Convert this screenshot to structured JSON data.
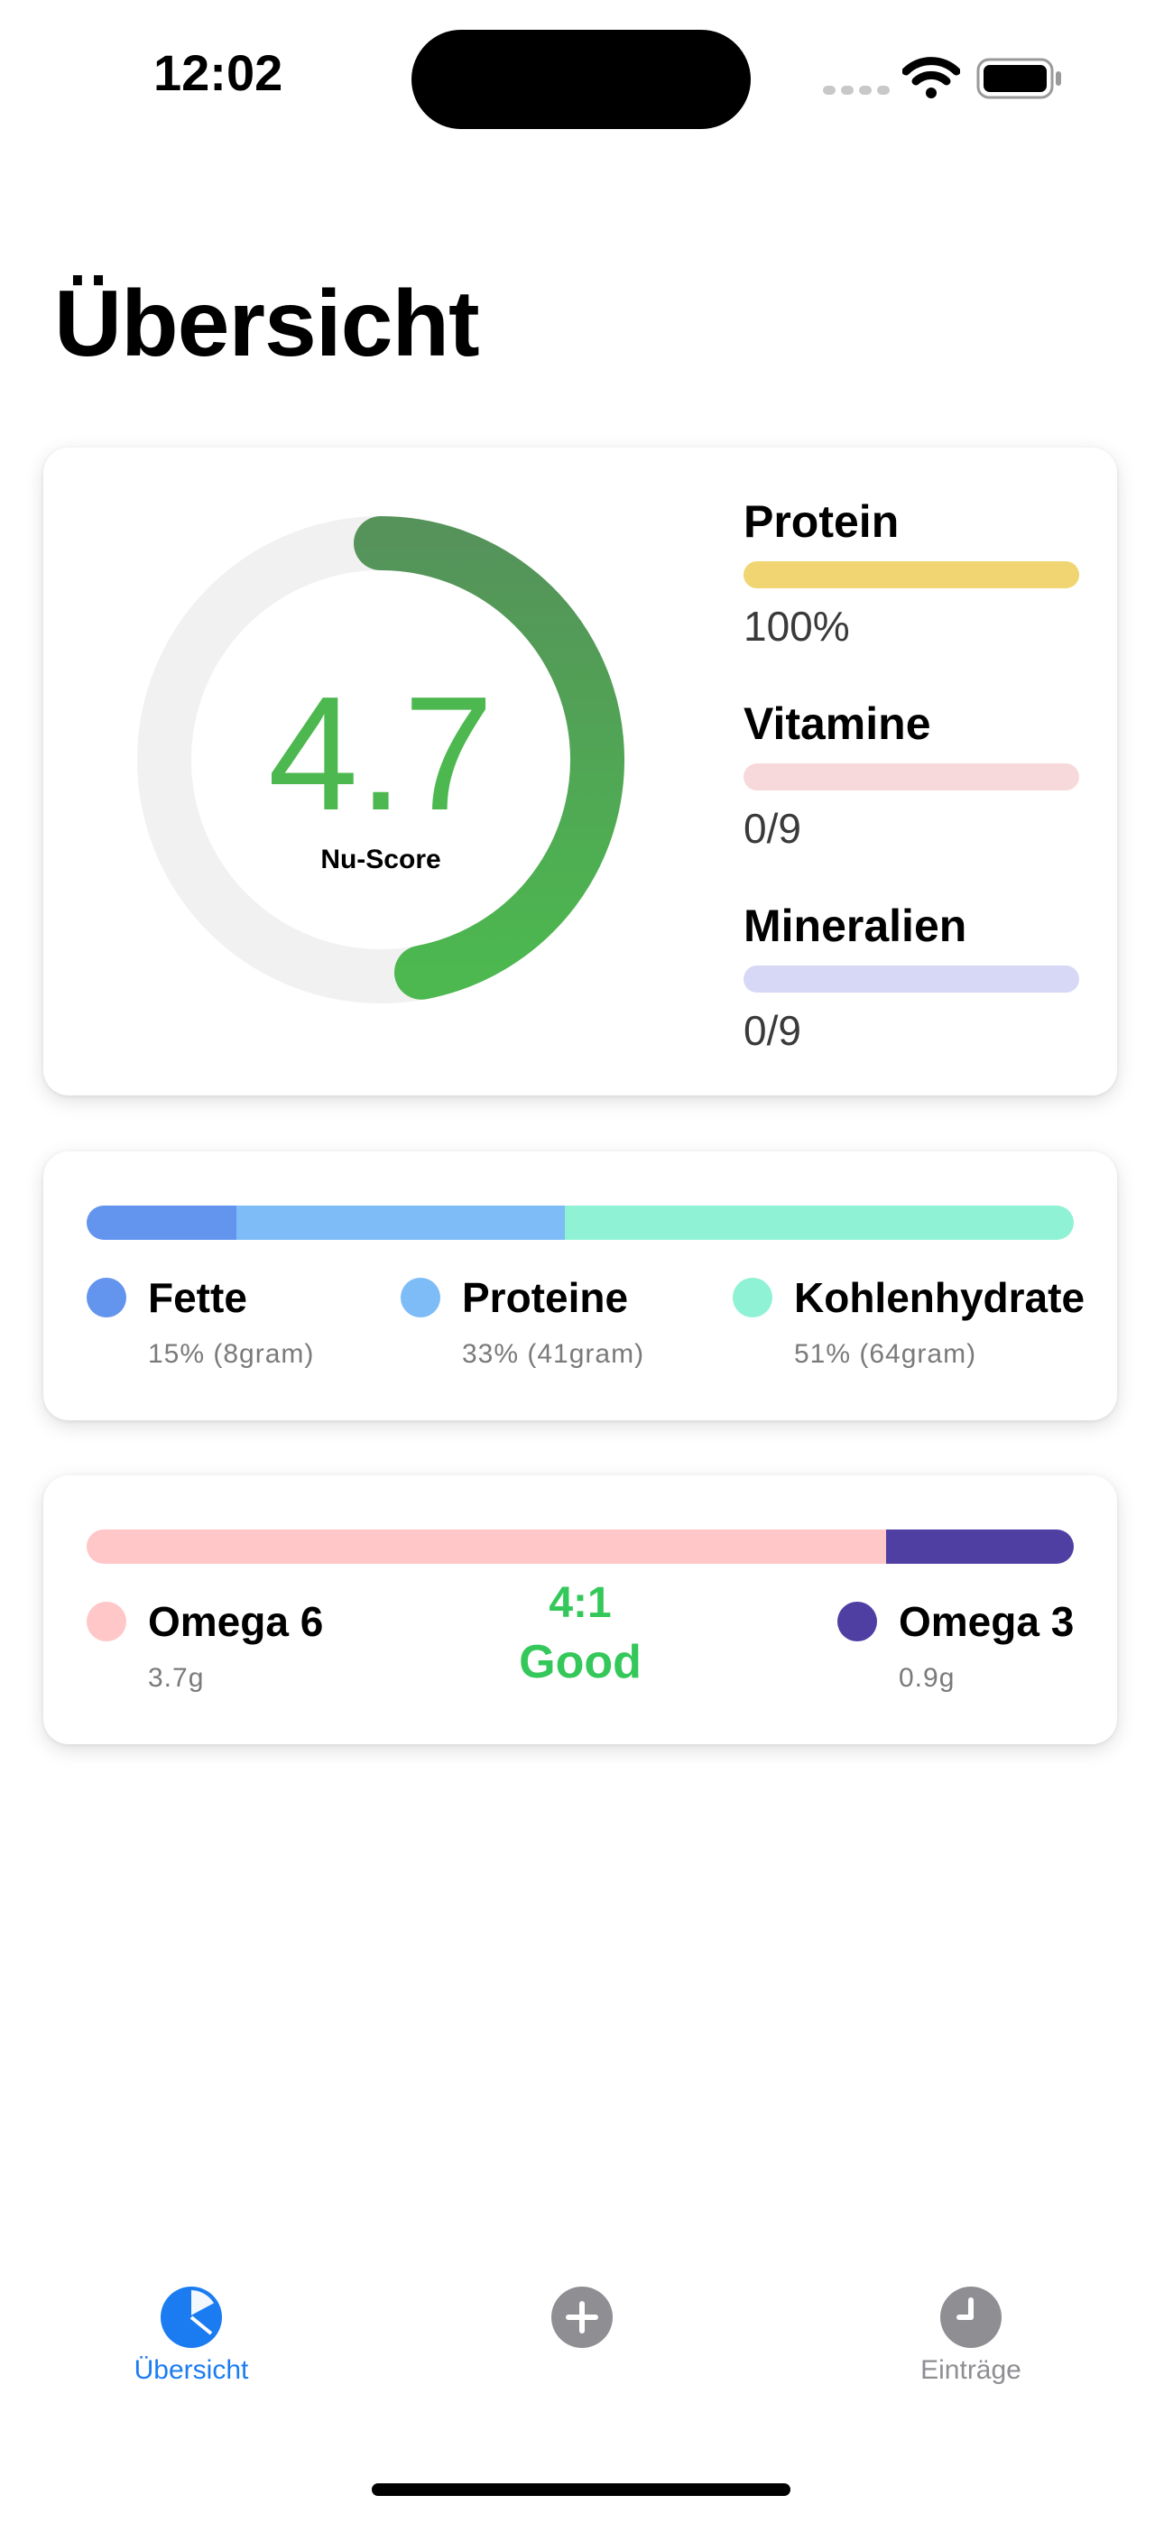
{
  "status_bar": {
    "time": "12:02",
    "icons": [
      "cellular-signal-icon",
      "wifi-icon",
      "battery-icon"
    ]
  },
  "page_title": "Übersicht",
  "score_card": {
    "score": "4.7",
    "score_label": "Nu-Score",
    "score_fraction": 0.47,
    "ring_color": "#4cb84f",
    "stats": [
      {
        "label": "Protein",
        "value": "100%",
        "fraction": 1.0,
        "color": "#f0d572"
      },
      {
        "label": "Vitamine",
        "value": "0/9",
        "fraction": 0.0,
        "color": "#f8d9db"
      },
      {
        "label": "Mineralien",
        "value": "0/9",
        "fraction": 0.0,
        "color": "#d6d8f6"
      }
    ]
  },
  "macros_card": {
    "items": [
      {
        "name": "Fette",
        "detail": "15% (8gram)",
        "percent": 15,
        "color": "#6394ee"
      },
      {
        "name": "Proteine",
        "detail": "33% (41gram)",
        "percent": 33,
        "color": "#7dbcf7"
      },
      {
        "name": "Kohlenhydrate",
        "detail": "51% (64gram)",
        "percent": 51,
        "color": "#90f2d4"
      }
    ]
  },
  "omega_card": {
    "omega6": {
      "name": "Omega 6",
      "amount": "3.7g",
      "color": "#ffc7c7"
    },
    "omega3": {
      "name": "Omega 3",
      "amount": "0.9g",
      "color": "#4f3fa3"
    },
    "omega6_share": 0.81,
    "ratio": "4:1",
    "rating": "Good",
    "rating_color": "#34c759"
  },
  "tab_bar": {
    "tabs": [
      {
        "label": "Übersicht",
        "icon": "pie-chart-icon",
        "active": true
      },
      {
        "label": "",
        "icon": "plus-circle-icon",
        "active": false
      },
      {
        "label": "Einträge",
        "icon": "clock-icon",
        "active": false
      }
    ],
    "active_color": "#1b7cf2",
    "inactive_color": "#8e8e93"
  }
}
